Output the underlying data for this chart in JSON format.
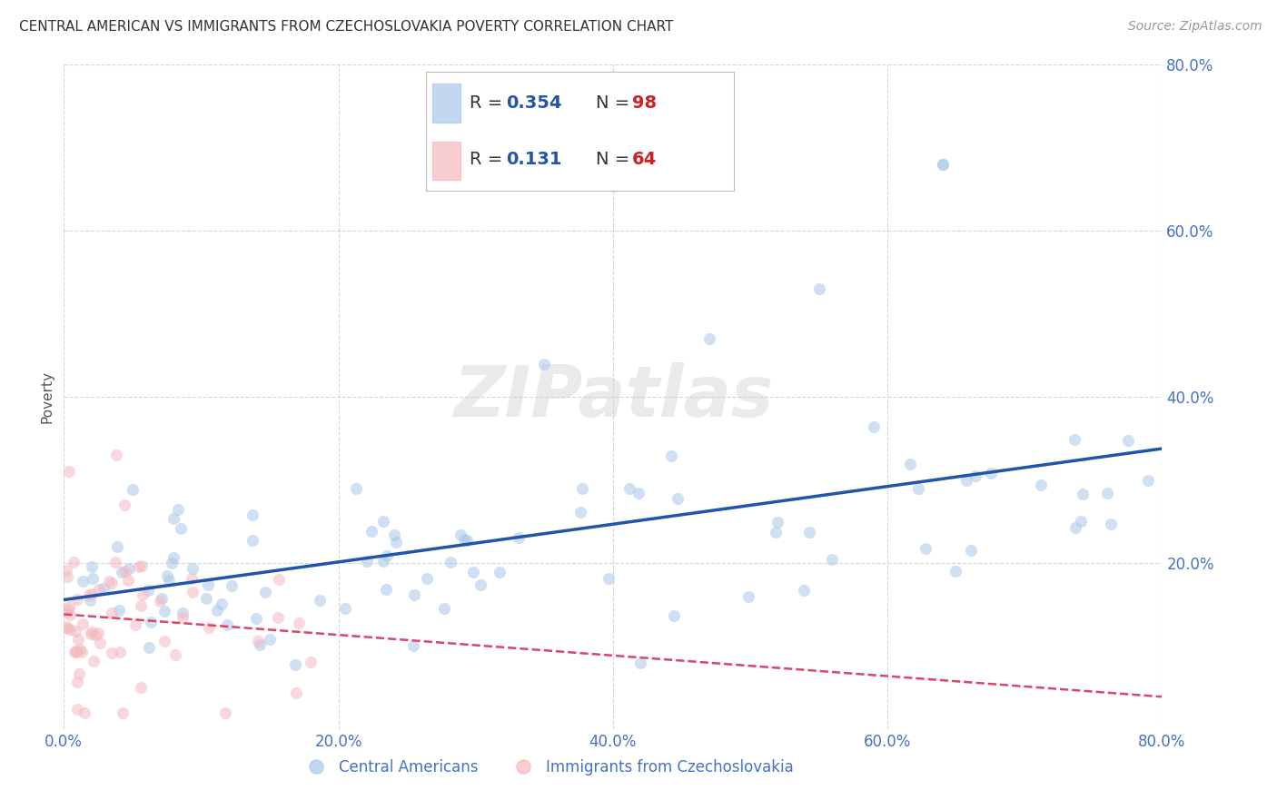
{
  "title": "CENTRAL AMERICAN VS IMMIGRANTS FROM CZECHOSLOVAKIA POVERTY CORRELATION CHART",
  "source": "Source: ZipAtlas.com",
  "tick_color": "#4472c4",
  "ylabel": "Poverty",
  "xmin": 0.0,
  "xmax": 0.8,
  "ymin": 0.0,
  "ymax": 0.8,
  "xticks": [
    0.0,
    0.2,
    0.4,
    0.6,
    0.8
  ],
  "yticks": [
    0.2,
    0.4,
    0.6,
    0.8
  ],
  "blue_R": "0.354",
  "blue_N": "98",
  "pink_R": "0.131",
  "pink_N": "64",
  "blue_dot_color": "#a8c8e8",
  "pink_dot_color": "#f4b8c0",
  "blue_line_color": "#2255aa",
  "pink_line_color": "#dd4466",
  "legend_text_color": "#2255aa",
  "watermark": "ZIPatlas",
  "legend_label_blue": "Central Americans",
  "legend_label_pink": "Immigrants from Czechoslovakia",
  "title_fontsize": 11,
  "source_fontsize": 10,
  "tick_fontsize": 12,
  "legend_fontsize": 14
}
